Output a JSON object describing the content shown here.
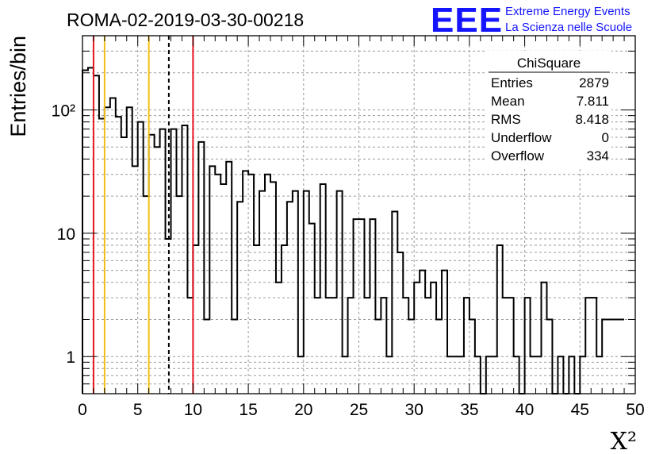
{
  "chart_data": {
    "type": "histogram",
    "title": "ROMA-02-2019-03-30-00218",
    "xlabel": "X²",
    "ylabel": "Entries/bin",
    "xlim": [
      0,
      50
    ],
    "ylim": [
      0.5,
      400
    ],
    "yscale": "log",
    "grid": true,
    "bin_width": 0.5,
    "x_ticks": [
      "0",
      "5",
      "10",
      "15",
      "20",
      "25",
      "30",
      "35",
      "40",
      "45",
      "50"
    ],
    "y_ticks": [
      {
        "value": 1,
        "label": "1"
      },
      {
        "value": 10,
        "label": "10"
      },
      {
        "value": 100,
        "label": "10²"
      }
    ],
    "counts": [
      210,
      220,
      190,
      85,
      105,
      125,
      88,
      60,
      105,
      35,
      80,
      20,
      63,
      50,
      70,
      9,
      70,
      20,
      75,
      3,
      8,
      55,
      2,
      35,
      30,
      25,
      38,
      2,
      18,
      32,
      30,
      8,
      22,
      30,
      26,
      4,
      8,
      18,
      22,
      1,
      22,
      12,
      3,
      25,
      3,
      3,
      22,
      1,
      3,
      13,
      13,
      3,
      13,
      2,
      3,
      1,
      15,
      7,
      3,
      2,
      4,
      5,
      3,
      4,
      2,
      5,
      1,
      1,
      1,
      3,
      2,
      1,
      0,
      1,
      1,
      8,
      3,
      3,
      1,
      0,
      3,
      1,
      1,
      4,
      2,
      0,
      1,
      0,
      1,
      0,
      1,
      3,
      3,
      1,
      2,
      2,
      2,
      2
    ],
    "vertical_lines": [
      {
        "x": 1,
        "color": "#e8141e",
        "style": "solid"
      },
      {
        "x": 2,
        "color": "#f0c018",
        "style": "solid"
      },
      {
        "x": 6,
        "color": "#f0c018",
        "style": "solid"
      },
      {
        "x": 7.811,
        "color": "#000000",
        "style": "dashed"
      },
      {
        "x": 10,
        "color": "#e8141e",
        "style": "solid"
      }
    ]
  },
  "stats_box": {
    "title": "ChiSquare",
    "rows": [
      {
        "label": "Entries",
        "value": "2879"
      },
      {
        "label": "Mean",
        "value": "7.811"
      },
      {
        "label": "RMS",
        "value": "8.418"
      },
      {
        "label": "Underflow",
        "value": "0"
      },
      {
        "label": "Overflow",
        "value": "334"
      }
    ]
  },
  "logo": {
    "mark": "EEE",
    "line1": "Extreme Energy Events",
    "line2": "La Scienza nelle Scuole",
    "color": "#1414ff"
  }
}
